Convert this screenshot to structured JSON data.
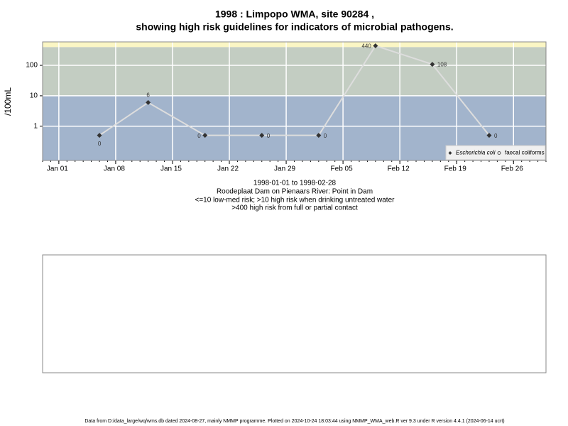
{
  "chart_data": {
    "type": "line",
    "title": "1998 : Limpopo WMA, site 90284 ,",
    "subtitle": "showing high risk guidelines for indicators of microbial pathogens.",
    "y_label": "/100mL",
    "x": [
      "1998-01-06",
      "1998-01-12",
      "1998-01-19",
      "1998-01-26",
      "1998-02-02",
      "1998-02-09",
      "1998-02-16",
      "1998-02-23"
    ],
    "series": [
      {
        "name": "Escherichia coli",
        "color": "#333333",
        "line_color": "#dddddd",
        "values": [
          0.5,
          6,
          0.5,
          0.5,
          0.5,
          440,
          108,
          0.5
        ],
        "value_labels": [
          "0",
          "6",
          "0",
          "0",
          "0",
          "440",
          "108",
          "0"
        ]
      },
      {
        "name": "faecal coliforms",
        "color": "#555555",
        "line_color": "#dddddd",
        "values": [
          null,
          null,
          null,
          null,
          null,
          null,
          null,
          null
        ]
      }
    ],
    "log_y": true,
    "ylim": [
      0.075,
      590
    ],
    "yticks": [
      1,
      10,
      100
    ],
    "xlim": [
      "1997-12-30",
      "1998-03-02"
    ],
    "xticks": [
      {
        "value": "1998-01-01",
        "label": "Jan 01"
      },
      {
        "value": "1998-01-08",
        "label": "Jan 08"
      },
      {
        "value": "1998-01-15",
        "label": "Jan 15"
      },
      {
        "value": "1998-01-22",
        "label": "Jan 22"
      },
      {
        "value": "1998-01-29",
        "label": "Jan 29"
      },
      {
        "value": "1998-02-05",
        "label": "Feb 05"
      },
      {
        "value": "1998-02-12",
        "label": "Feb 12"
      },
      {
        "value": "1998-02-19",
        "label": "Feb 19"
      },
      {
        "value": "1998-02-26",
        "label": "Feb 26"
      }
    ],
    "grid": true,
    "thresholds": [
      10,
      400
    ],
    "band_colors": [
      "#a2b4cc",
      "#c3cdc2",
      "#fbf6c4"
    ],
    "legend": "bottom-right",
    "notes": [
      "1998-01-01 to 1998-02-28",
      "Roodeplaat Dam on Pienaars River: Point in Dam",
      "<=10 low-med risk; >10 high risk when drinking untreated water",
      ">400 high risk from full or partial contact"
    ],
    "footer": "Data from D:/data_large/wq/wms.db dated 2024-08-27, mainly NMMP programme. Plotted on 2024-10-24 18:03:44 using NMMP_WMA_web.R ver 9.3 under R version 4.4.1 (2024-06-14 ucrt)"
  }
}
